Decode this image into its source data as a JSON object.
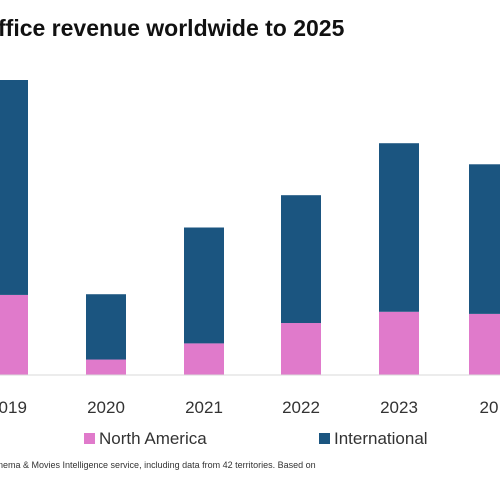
{
  "chart_data": {
    "type": "bar",
    "stacked": true,
    "title": "ffice revenue worldwide to 2025",
    "categories": [
      "2019",
      "2020",
      "2021",
      "2022",
      "2023",
      "20"
    ],
    "series": [
      {
        "name": "North America",
        "color": "#E07ACB",
        "values": [
          11.4,
          2.2,
          4.5,
          7.4,
          9.0,
          8.7
        ]
      },
      {
        "name": "International",
        "color": "#1B5580",
        "values": [
          30.6,
          9.3,
          16.5,
          18.2,
          24.0,
          21.3
        ]
      }
    ],
    "ylim": [
      0,
      42
    ],
    "legend_position": "bottom",
    "grid": false,
    "source_note": "nema & Movies Intelligence service, including data from 42 territories.  Based on"
  }
}
